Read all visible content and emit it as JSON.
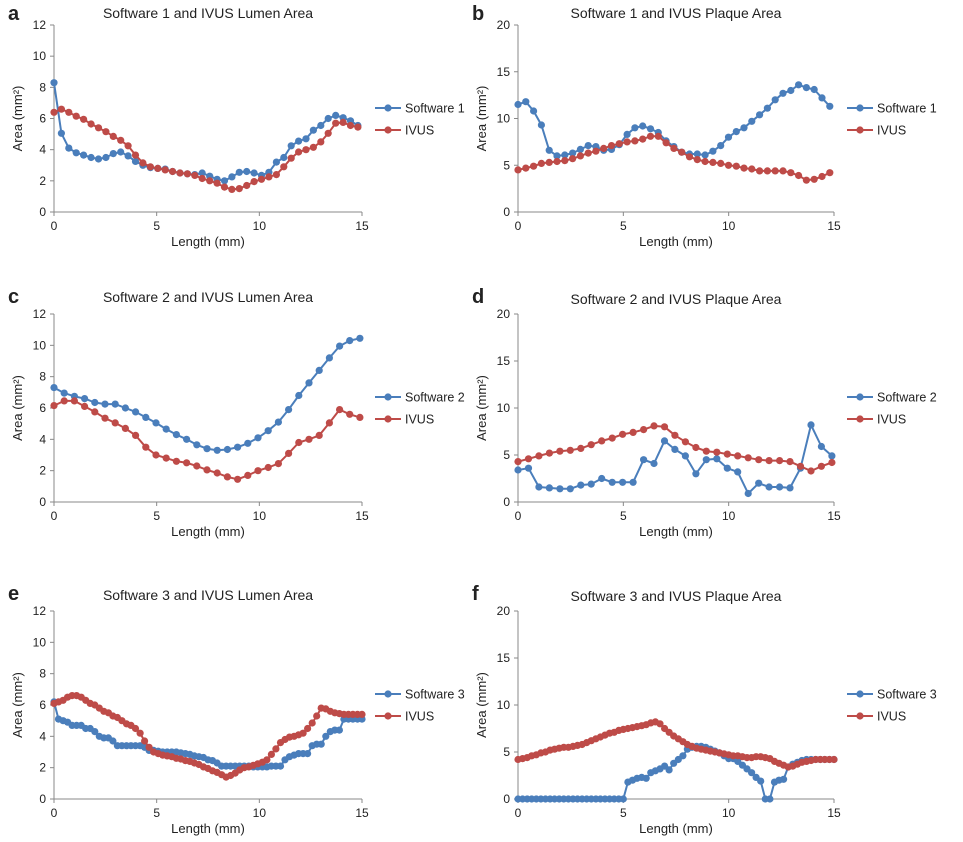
{
  "figure": {
    "colors": {
      "software": "#4a7ebb",
      "ivus": "#be4b48",
      "axis": "#888888",
      "text": "#222222"
    }
  },
  "chart_data": [
    {
      "panel": "a",
      "type": "line",
      "title": "Software 1 and IVUS Lumen Area",
      "xlabel": "Length (mm)",
      "ylabel": "Area (mm²)",
      "xlim": [
        0,
        15
      ],
      "ylim": [
        0,
        12
      ],
      "xticks": [
        0,
        5,
        10,
        15
      ],
      "yticks": [
        0,
        2,
        4,
        6,
        8,
        10,
        12
      ],
      "grid": false,
      "legend_position": "right",
      "x_start": 0,
      "x_end": 14.8,
      "series": [
        {
          "name": "Software 1",
          "color": "#4a7ebb",
          "values": [
            8.3,
            5.05,
            4.1,
            3.8,
            3.65,
            3.5,
            3.4,
            3.5,
            3.75,
            3.85,
            3.6,
            3.25,
            3.0,
            2.85,
            2.8,
            2.75,
            2.6,
            2.5,
            2.45,
            2.4,
            2.5,
            2.3,
            2.1,
            2.0,
            2.25,
            2.55,
            2.6,
            2.5,
            2.35,
            2.55,
            3.2,
            3.5,
            4.25,
            4.55,
            4.7,
            5.25,
            5.55,
            6.0,
            6.2,
            6.05,
            5.85,
            5.55
          ]
        },
        {
          "name": "IVUS",
          "color": "#be4b48",
          "values": [
            6.4,
            6.6,
            6.4,
            6.15,
            5.95,
            5.65,
            5.4,
            5.15,
            4.85,
            4.6,
            4.25,
            3.65,
            3.15,
            2.9,
            2.8,
            2.7,
            2.6,
            2.5,
            2.45,
            2.35,
            2.15,
            2.0,
            1.85,
            1.6,
            1.45,
            1.5,
            1.7,
            1.95,
            2.1,
            2.25,
            2.4,
            2.9,
            3.45,
            3.85,
            4.0,
            4.15,
            4.5,
            5.05,
            5.7,
            5.75,
            5.55,
            5.45
          ]
        }
      ]
    },
    {
      "panel": "b",
      "type": "line",
      "title": "Software 1 and IVUS Plaque Area",
      "xlabel": "Length (mm)",
      "ylabel": "Area (mm²)",
      "xlim": [
        0,
        15
      ],
      "ylim": [
        0,
        20
      ],
      "xticks": [
        0,
        5,
        10,
        15
      ],
      "yticks": [
        0,
        5,
        10,
        15,
        20
      ],
      "grid": false,
      "legend_position": "right",
      "x_start": 0,
      "x_end": 14.8,
      "series": [
        {
          "name": "Software 1",
          "color": "#4a7ebb",
          "values": [
            11.5,
            11.8,
            10.8,
            9.3,
            6.6,
            6.0,
            6.1,
            6.3,
            6.7,
            7.1,
            7.0,
            6.6,
            6.7,
            7.2,
            8.3,
            9.0,
            9.2,
            8.9,
            8.5,
            7.6,
            7.0,
            6.4,
            6.2,
            6.2,
            6.1,
            6.5,
            7.1,
            8.0,
            8.6,
            9.0,
            9.7,
            10.4,
            11.1,
            12.0,
            12.7,
            13.0,
            13.6,
            13.3,
            13.1,
            12.2,
            11.3
          ]
        },
        {
          "name": "IVUS",
          "color": "#be4b48",
          "values": [
            4.5,
            4.7,
            4.9,
            5.2,
            5.3,
            5.4,
            5.5,
            5.7,
            6.0,
            6.3,
            6.5,
            6.8,
            7.1,
            7.3,
            7.5,
            7.6,
            7.8,
            8.1,
            8.1,
            7.4,
            6.8,
            6.4,
            5.9,
            5.6,
            5.4,
            5.3,
            5.2,
            5.0,
            4.9,
            4.7,
            4.6,
            4.4,
            4.4,
            4.4,
            4.4,
            4.2,
            3.9,
            3.4,
            3.5,
            3.8,
            4.2
          ]
        }
      ]
    },
    {
      "panel": "c",
      "type": "line",
      "title": "Software 2 and IVUS Lumen Area",
      "xlabel": "Length (mm)",
      "ylabel": "Area (mm²)",
      "xlim": [
        0,
        15
      ],
      "ylim": [
        0,
        12
      ],
      "xticks": [
        0,
        5,
        10,
        15
      ],
      "yticks": [
        0,
        2,
        4,
        6,
        8,
        10,
        12
      ],
      "grid": false,
      "legend_position": "right",
      "x_start": 0,
      "x_end": 14.9,
      "series": [
        {
          "name": "Software 2",
          "color": "#4a7ebb",
          "values": [
            7.3,
            6.95,
            6.75,
            6.6,
            6.35,
            6.25,
            6.25,
            6.0,
            5.75,
            5.4,
            5.05,
            4.65,
            4.3,
            4.0,
            3.65,
            3.4,
            3.3,
            3.35,
            3.5,
            3.75,
            4.1,
            4.55,
            5.1,
            5.9,
            6.8,
            7.6,
            8.4,
            9.2,
            9.95,
            10.3,
            10.45
          ]
        },
        {
          "name": "IVUS",
          "color": "#be4b48",
          "values": [
            6.15,
            6.45,
            6.45,
            6.1,
            5.75,
            5.35,
            5.05,
            4.7,
            4.25,
            3.5,
            3.0,
            2.8,
            2.6,
            2.5,
            2.3,
            2.05,
            1.85,
            1.6,
            1.45,
            1.7,
            2.0,
            2.2,
            2.45,
            3.1,
            3.8,
            4.0,
            4.25,
            5.05,
            5.9,
            5.6,
            5.4
          ]
        }
      ]
    },
    {
      "panel": "d",
      "type": "line",
      "title": "Software 2 and IVUS Plaque Area",
      "xlabel": "Length (mm)",
      "ylabel": "Area (mm²)",
      "xlim": [
        0,
        15
      ],
      "ylim": [
        0,
        20
      ],
      "xticks": [
        0,
        5,
        10,
        15
      ],
      "yticks": [
        0,
        5,
        10,
        15,
        20
      ],
      "grid": false,
      "legend_position": "right",
      "x_start": 0,
      "x_end": 14.9,
      "series": [
        {
          "name": "Software 2",
          "color": "#4a7ebb",
          "values": [
            3.4,
            3.6,
            1.6,
            1.5,
            1.4,
            1.4,
            1.8,
            1.9,
            2.5,
            2.1,
            2.1,
            2.1,
            4.5,
            4.1,
            6.5,
            5.6,
            4.9,
            3.0,
            4.5,
            4.6,
            3.6,
            3.2,
            0.9,
            2.0,
            1.6,
            1.6,
            1.5,
            3.6,
            8.2,
            5.9,
            4.9
          ]
        },
        {
          "name": "IVUS",
          "color": "#be4b48",
          "values": [
            4.3,
            4.6,
            4.9,
            5.2,
            5.4,
            5.5,
            5.7,
            6.1,
            6.5,
            6.8,
            7.2,
            7.4,
            7.7,
            8.1,
            8.0,
            7.1,
            6.4,
            5.8,
            5.4,
            5.3,
            5.1,
            4.9,
            4.7,
            4.5,
            4.4,
            4.4,
            4.3,
            3.8,
            3.3,
            3.8,
            4.2
          ]
        }
      ]
    },
    {
      "panel": "e",
      "type": "line",
      "title": "Software 3 and IVUS Lumen Area",
      "xlabel": "Length (mm)",
      "ylabel": "Area (mm²)",
      "xlim": [
        0,
        15
      ],
      "ylim": [
        0,
        12
      ],
      "xticks": [
        0,
        5,
        10,
        15
      ],
      "yticks": [
        0,
        2,
        4,
        6,
        8,
        10,
        12
      ],
      "grid": false,
      "legend_position": "right",
      "x_start": 0,
      "x_end": 15.0,
      "series": [
        {
          "name": "Software 3",
          "color": "#4a7ebb",
          "values": [
            6.2,
            5.1,
            5.0,
            4.9,
            4.7,
            4.7,
            4.7,
            4.5,
            4.5,
            4.3,
            4.0,
            3.9,
            3.9,
            3.7,
            3.4,
            3.4,
            3.4,
            3.4,
            3.4,
            3.4,
            3.3,
            3.1,
            3.1,
            3.05,
            3.0,
            3.0,
            3.0,
            3.0,
            2.95,
            2.9,
            2.85,
            2.75,
            2.7,
            2.65,
            2.5,
            2.45,
            2.3,
            2.1,
            2.1,
            2.1,
            2.1,
            2.1,
            2.1,
            2.1,
            2.05,
            2.05,
            2.05,
            2.05,
            2.1,
            2.1,
            2.1,
            2.5,
            2.7,
            2.8,
            2.9,
            2.9,
            2.9,
            3.4,
            3.5,
            3.5,
            4.0,
            4.3,
            4.4,
            4.4,
            5.1,
            5.1,
            5.1,
            5.1,
            5.1
          ]
        },
        {
          "name": "IVUS",
          "color": "#be4b48",
          "values": [
            6.1,
            6.2,
            6.3,
            6.5,
            6.6,
            6.6,
            6.5,
            6.3,
            6.1,
            6.0,
            5.8,
            5.6,
            5.5,
            5.3,
            5.2,
            5.0,
            4.8,
            4.7,
            4.5,
            4.2,
            3.7,
            3.3,
            3.0,
            2.9,
            2.8,
            2.75,
            2.7,
            2.6,
            2.55,
            2.45,
            2.4,
            2.3,
            2.2,
            2.05,
            1.95,
            1.8,
            1.7,
            1.55,
            1.4,
            1.5,
            1.65,
            1.85,
            2.0,
            2.05,
            2.15,
            2.25,
            2.35,
            2.5,
            2.85,
            3.2,
            3.6,
            3.8,
            3.95,
            4.0,
            4.1,
            4.2,
            4.5,
            4.85,
            5.3,
            5.8,
            5.75,
            5.6,
            5.5,
            5.45,
            5.4,
            5.4,
            5.4,
            5.4,
            5.4
          ]
        }
      ]
    },
    {
      "panel": "f",
      "type": "line",
      "title": "Software 3 and IVUS Plaque Area",
      "xlabel": "Length (mm)",
      "ylabel": "Area (mm²)",
      "xlim": [
        0,
        15
      ],
      "ylim": [
        0,
        20
      ],
      "xticks": [
        0,
        5,
        10,
        15
      ],
      "yticks": [
        0,
        5,
        10,
        15,
        20
      ],
      "grid": false,
      "legend_position": "right",
      "x_start": 0,
      "x_end": 15.0,
      "series": [
        {
          "name": "Software 3",
          "color": "#4a7ebb",
          "values": [
            0,
            0,
            0,
            0,
            0,
            0,
            0,
            0,
            0,
            0,
            0,
            0,
            0,
            0,
            0,
            0,
            0,
            0,
            0,
            0,
            0,
            0,
            0,
            0,
            1.8,
            2.0,
            2.2,
            2.3,
            2.2,
            2.8,
            3.0,
            3.2,
            3.5,
            3.1,
            3.8,
            4.2,
            4.6,
            5.3,
            5.5,
            5.6,
            5.6,
            5.5,
            5.3,
            5.1,
            4.9,
            4.6,
            4.3,
            4.3,
            4.0,
            3.6,
            3.2,
            2.8,
            2.3,
            1.9,
            0,
            0,
            1.8,
            2.0,
            2.1,
            3.4,
            3.7,
            3.9,
            4.1,
            4.2,
            4.2,
            4.2,
            4.2,
            4.2,
            4.2,
            4.2
          ]
        },
        {
          "name": "IVUS",
          "color": "#be4b48",
          "values": [
            4.2,
            4.3,
            4.4,
            4.6,
            4.7,
            4.9,
            5.0,
            5.2,
            5.3,
            5.4,
            5.5,
            5.5,
            5.6,
            5.7,
            5.8,
            6.0,
            6.2,
            6.4,
            6.6,
            6.8,
            7.0,
            7.1,
            7.3,
            7.4,
            7.5,
            7.6,
            7.7,
            7.8,
            7.9,
            8.1,
            8.2,
            8.0,
            7.5,
            7.1,
            6.7,
            6.4,
            6.1,
            5.8,
            5.6,
            5.4,
            5.3,
            5.2,
            5.1,
            5.0,
            4.9,
            4.8,
            4.7,
            4.6,
            4.6,
            4.5,
            4.4,
            4.4,
            4.5,
            4.5,
            4.4,
            4.3,
            4.0,
            3.8,
            3.6,
            3.4,
            3.5,
            3.7,
            3.9,
            4.0,
            4.1,
            4.2,
            4.2,
            4.2,
            4.2,
            4.2
          ]
        }
      ]
    }
  ]
}
